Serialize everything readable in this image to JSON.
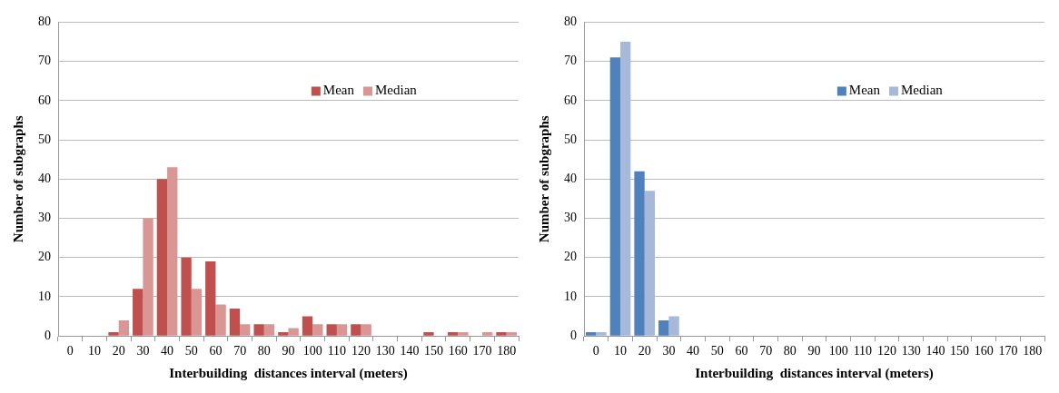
{
  "chart_data": [
    {
      "type": "bar",
      "xlabel": "Interbuilding  distances interval (meters)",
      "ylabel": "Number of subgraphs",
      "categories": [
        "0",
        "10",
        "20",
        "30",
        "40",
        "50",
        "60",
        "70",
        "80",
        "90",
        "100",
        "110",
        "120",
        "130",
        "140",
        "150",
        "160",
        "170",
        "180"
      ],
      "ylim": [
        0,
        80
      ],
      "yticks": [
        0,
        10,
        20,
        30,
        40,
        50,
        60,
        70,
        80
      ],
      "grid": "y",
      "legend": "top right",
      "series": [
        {
          "name": "Mean",
          "color": "#c0504d",
          "values": [
            0,
            0,
            1,
            12,
            40,
            20,
            19,
            7,
            3,
            1,
            5,
            3,
            3,
            0,
            0,
            1,
            1,
            0,
            1
          ]
        },
        {
          "name": "Median",
          "color": "#d99694",
          "values": [
            0,
            0,
            4,
            30,
            43,
            12,
            8,
            3,
            3,
            2,
            3,
            3,
            3,
            0,
            0,
            0,
            1,
            1,
            1
          ]
        }
      ]
    },
    {
      "type": "bar",
      "xlabel": "Interbuilding  distances interval (meters)",
      "ylabel": "Number of subgraphs",
      "categories": [
        "0",
        "10",
        "20",
        "30",
        "40",
        "50",
        "60",
        "70",
        "80",
        "90",
        "100",
        "110",
        "120",
        "130",
        "140",
        "150",
        "160",
        "170",
        "180"
      ],
      "ylim": [
        0,
        80
      ],
      "yticks": [
        0,
        10,
        20,
        30,
        40,
        50,
        60,
        70,
        80
      ],
      "grid": "y",
      "legend": "top right",
      "series": [
        {
          "name": "Mean",
          "color": "#4f81bd",
          "values": [
            1,
            71,
            42,
            4,
            0,
            0,
            0,
            0,
            0,
            0,
            0,
            0,
            0,
            0,
            0,
            0,
            0,
            0,
            0
          ]
        },
        {
          "name": "Median",
          "color": "#a7b9d9",
          "values": [
            1,
            75,
            37,
            5,
            0,
            0,
            0,
            0,
            0,
            0,
            0,
            0,
            0,
            0,
            0,
            0,
            0,
            0,
            0
          ]
        }
      ]
    }
  ]
}
